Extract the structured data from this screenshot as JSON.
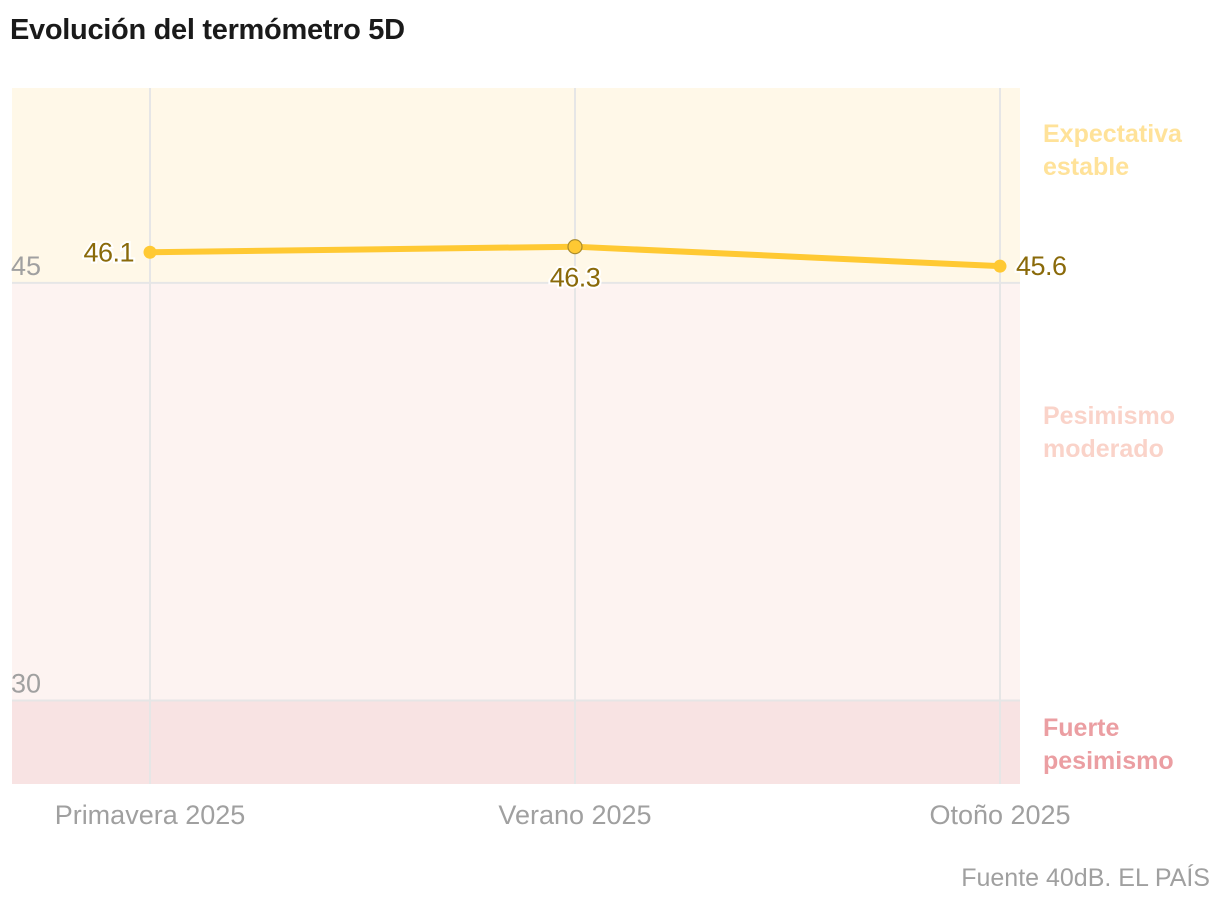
{
  "title": "Evolución del termómetro 5D",
  "source": "Fuente 40dB. EL PAÍS",
  "chart_data": {
    "type": "line",
    "title": "Evolución del termómetro 5D",
    "xlabel": "",
    "ylabel": "",
    "categories": [
      "Primavera 2025",
      "Verano 2025",
      "Otoño 2025"
    ],
    "series": [
      {
        "name": "Termómetro 5D",
        "values": [
          46.1,
          46.3,
          45.6
        ],
        "color": "#ffc933"
      }
    ],
    "data_labels": [
      "46.1",
      "46.3",
      "45.6"
    ],
    "ylim": [
      27,
      52
    ],
    "yticks": [
      30,
      45
    ],
    "ytick_labels": [
      "30",
      "45"
    ],
    "grid": true,
    "bands": [
      {
        "name": "Expectativa estable",
        "label_lines": [
          "Expectativa",
          "estable"
        ],
        "from": 45,
        "to": 52,
        "fill": "#fff8e8",
        "label_color": "#ffe299"
      },
      {
        "name": "Pesimismo moderado",
        "label_lines": [
          "Pesimismo",
          "moderado"
        ],
        "from": 30,
        "to": 45,
        "fill": "#fdf3f1",
        "label_color": "#fad3c9"
      },
      {
        "name": "Fuerte pesimismo",
        "label_lines": [
          "Fuerte",
          "pesimismo"
        ],
        "from": 27,
        "to": 30,
        "fill": "#f8e3e3",
        "label_color": "#eb9ea2"
      }
    ],
    "colors": {
      "line": "#ffc933",
      "data_label": "#8a6a0a",
      "tick_label": "#a0a0a0",
      "grid": "#e6e6e6"
    }
  }
}
